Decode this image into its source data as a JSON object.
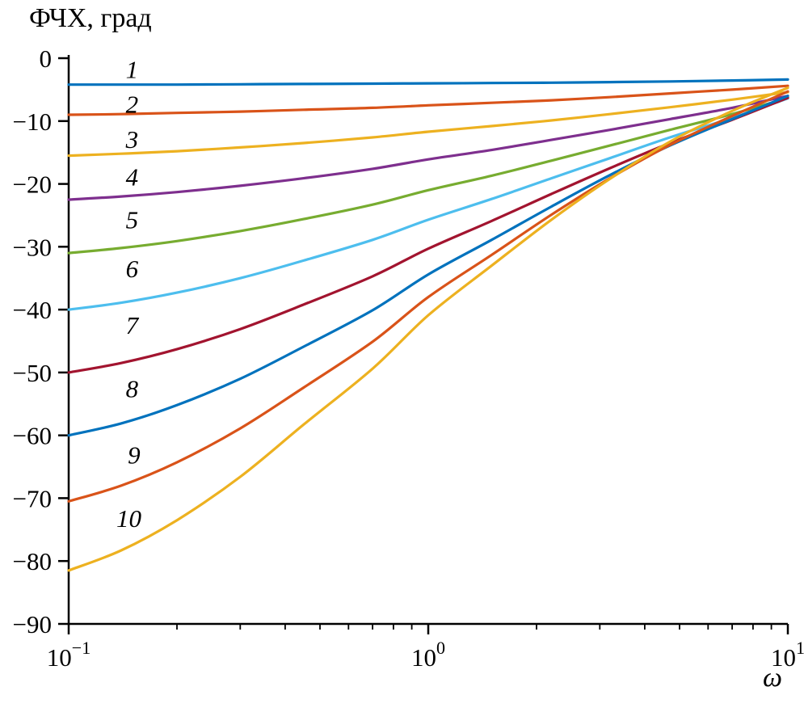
{
  "title": "ФЧХ, град",
  "xlabel": "ω",
  "chart_data": {
    "type": "line",
    "x_scale": "log",
    "xlim": [
      0.1,
      10
    ],
    "ylim": [
      -90,
      0
    ],
    "grid": false,
    "x": [
      0.1,
      0.14,
      0.2,
      0.3,
      0.45,
      0.7,
      1,
      1.5,
      2.2,
      3.2,
      4.7,
      7,
      10
    ],
    "series": [
      {
        "name": "1",
        "color": "#0072BD",
        "values": [
          -4.2,
          -4.2,
          -4.2,
          -4.15,
          -4.1,
          -4.05,
          -4.0,
          -3.95,
          -3.9,
          -3.8,
          -3.7,
          -3.55,
          -3.4
        ]
      },
      {
        "name": "2",
        "color": "#D95319",
        "values": [
          -9.0,
          -8.9,
          -8.7,
          -8.5,
          -8.2,
          -7.9,
          -7.5,
          -7.1,
          -6.7,
          -6.2,
          -5.6,
          -5.0,
          -4.4
        ]
      },
      {
        "name": "3",
        "color": "#EDB120",
        "values": [
          -15.5,
          -15.2,
          -14.8,
          -14.2,
          -13.5,
          -12.6,
          -11.7,
          -10.8,
          -9.9,
          -8.9,
          -7.8,
          -6.6,
          -5.4
        ]
      },
      {
        "name": "4",
        "color": "#7E2F8E",
        "values": [
          -22.5,
          -22.0,
          -21.3,
          -20.3,
          -19.1,
          -17.6,
          -16.1,
          -14.6,
          -13.0,
          -11.4,
          -9.7,
          -7.9,
          -6.0
        ]
      },
      {
        "name": "5",
        "color": "#77AC30",
        "values": [
          -31.0,
          -30.2,
          -29.1,
          -27.5,
          -25.6,
          -23.3,
          -21.0,
          -18.7,
          -16.3,
          -13.9,
          -11.4,
          -8.9,
          -6.3
        ]
      },
      {
        "name": "6",
        "color": "#4DBEEE",
        "values": [
          -40.0,
          -38.9,
          -37.3,
          -35.0,
          -32.2,
          -28.9,
          -25.7,
          -22.4,
          -19.1,
          -15.9,
          -12.6,
          -9.5,
          -6.4
        ]
      },
      {
        "name": "7",
        "color": "#A2142F",
        "values": [
          -50.0,
          -48.5,
          -46.3,
          -43.1,
          -39.2,
          -34.7,
          -30.3,
          -25.9,
          -21.6,
          -17.5,
          -13.5,
          -9.8,
          -6.3
        ]
      },
      {
        "name": "8",
        "color": "#0072BD",
        "values": [
          -60.0,
          -58.1,
          -55.2,
          -51.0,
          -45.9,
          -40.1,
          -34.4,
          -28.9,
          -23.6,
          -18.6,
          -13.9,
          -9.7,
          -6.0
        ]
      },
      {
        "name": "9",
        "color": "#D95319",
        "values": [
          -70.5,
          -68.0,
          -64.3,
          -58.9,
          -52.4,
          -45.1,
          -38.0,
          -31.3,
          -24.9,
          -19.1,
          -13.8,
          -9.2,
          -5.3
        ]
      },
      {
        "name": "10",
        "color": "#EDB120",
        "values": [
          -81.5,
          -78.3,
          -73.5,
          -66.6,
          -58.3,
          -49.4,
          -40.9,
          -33.0,
          -25.7,
          -19.2,
          -13.3,
          -8.4,
          -4.7
        ]
      }
    ],
    "y_ticks": [
      {
        "value": 0,
        "label": "0"
      },
      {
        "value": -10,
        "label": "−10"
      },
      {
        "value": -20,
        "label": "−20"
      },
      {
        "value": -30,
        "label": "−30"
      },
      {
        "value": -40,
        "label": "−40"
      },
      {
        "value": -50,
        "label": "−50"
      },
      {
        "value": -60,
        "label": "−60"
      },
      {
        "value": -70,
        "label": "−70"
      },
      {
        "value": -80,
        "label": "−80"
      },
      {
        "value": -90,
        "label": "−90"
      }
    ],
    "x_ticks": [
      {
        "value": 0.1,
        "base": "10",
        "exp": "−1"
      },
      {
        "value": 1,
        "base": "10",
        "exp": "0"
      },
      {
        "value": 10,
        "base": "10",
        "exp": "1"
      }
    ],
    "x_minor_ticks": [
      0.2,
      0.3,
      0.4,
      0.5,
      0.6,
      0.7,
      0.8,
      0.9,
      2,
      3,
      4,
      5,
      6,
      7,
      8,
      9
    ],
    "curve_labels": [
      {
        "text": "1",
        "omega": 0.15,
        "phase": -1.8
      },
      {
        "text": "2",
        "omega": 0.15,
        "phase": -7.3
      },
      {
        "text": "3",
        "omega": 0.15,
        "phase": -12.9
      },
      {
        "text": "4",
        "omega": 0.15,
        "phase": -18.9
      },
      {
        "text": "5",
        "omega": 0.15,
        "phase": -25.7
      },
      {
        "text": "6",
        "omega": 0.15,
        "phase": -33.5
      },
      {
        "text": "7",
        "omega": 0.15,
        "phase": -42.5
      },
      {
        "text": "8",
        "omega": 0.15,
        "phase": -52.6
      },
      {
        "text": "9",
        "omega": 0.152,
        "phase": -63.1
      },
      {
        "text": "10",
        "omega": 0.147,
        "phase": -73.2
      }
    ]
  }
}
